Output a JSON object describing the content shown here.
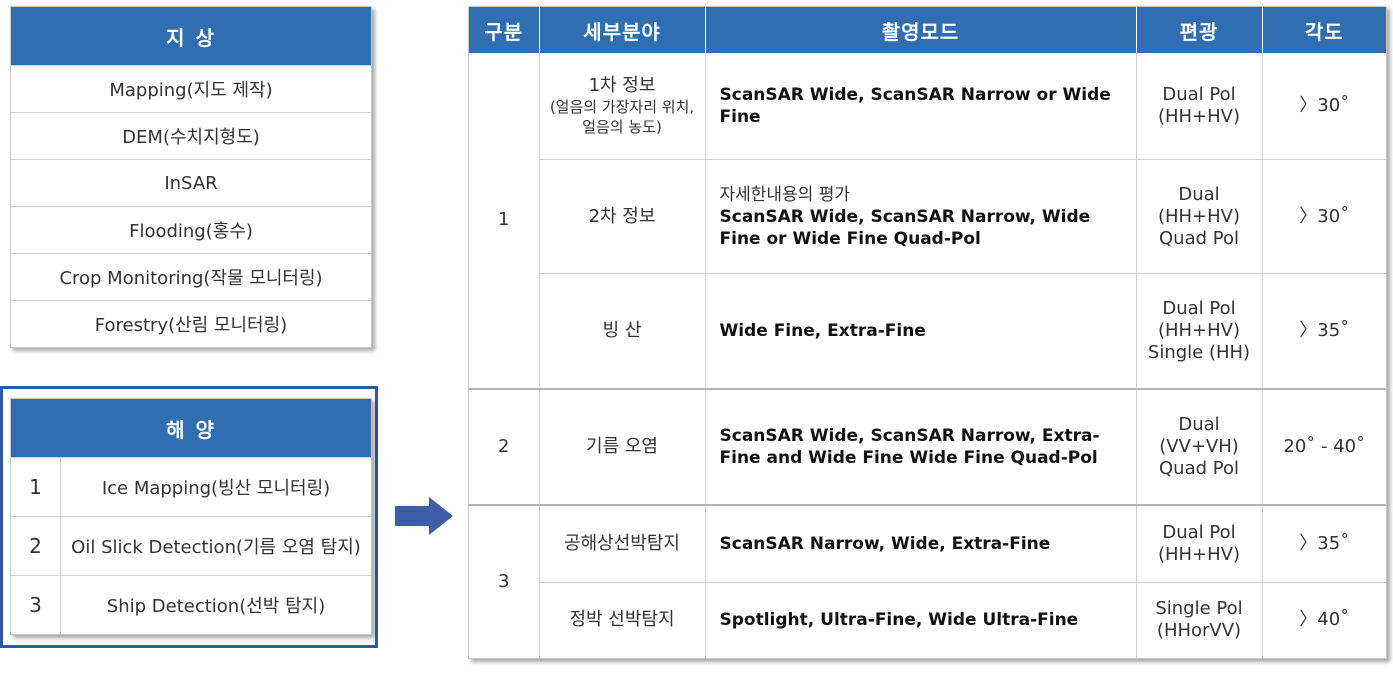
{
  "ground": {
    "title": "지 상",
    "items": [
      "Mapping(지도 제작)",
      "DEM(수치지형도)",
      "InSAR",
      "Flooding(홍수)",
      "Crop Monitoring(작물 모니터링)",
      "Forestry(산림 모니터링)"
    ]
  },
  "ocean": {
    "title": "해 양",
    "items": [
      {
        "num": "1",
        "label": "Ice Mapping(빙산 모니터링)"
      },
      {
        "num": "2",
        "label": "Oil Slick Detection(기름 오염 탐지)"
      },
      {
        "num": "3",
        "label": "Ship Detection(선박 탐지)"
      }
    ]
  },
  "arrow_icon": "right-arrow-icon",
  "table": {
    "headers": [
      "구분",
      "세부분야",
      "촬영모드",
      "편광",
      "각도"
    ],
    "groups": [
      "1",
      "2",
      "3"
    ],
    "rows": [
      {
        "field": "1차 정보",
        "field_note": "(얼음의 가장자리 위치, 얼음의 농도)",
        "mode_plain": "",
        "mode": "ScanSAR Wide, ScanSAR Narrow or Wide Fine",
        "pol": "Dual Pol (HH+HV)",
        "angle": "〉30˚"
      },
      {
        "field": "2차 정보",
        "field_note": "",
        "mode_plain": "자세한내용의 평가",
        "mode": "ScanSAR Wide, ScanSAR Narrow, Wide Fine or Wide Fine Quad-Pol",
        "pol": "Dual (HH+HV) Quad Pol",
        "angle": "〉30˚"
      },
      {
        "field": "빙 산",
        "field_note": "",
        "mode_plain": "",
        "mode": "Wide Fine, Extra-Fine",
        "pol": "Dual Pol (HH+HV) Single (HH)",
        "angle": "〉35˚"
      },
      {
        "field": "기름 오염",
        "field_note": "",
        "mode_plain": "",
        "mode": "ScanSAR Wide, ScanSAR Narrow, Extra-Fine and Wide Fine Wide Fine Quad-Pol",
        "pol": "Dual (VV+VH) Quad Pol",
        "angle": "20˚ - 40˚"
      },
      {
        "field": "공해상선박탐지",
        "field_note": "",
        "mode_plain": "",
        "mode": "ScanSAR Narrow, Wide, Extra-Fine",
        "pol": "Dual Pol (HH+HV)",
        "angle": "〉35˚"
      },
      {
        "field": "정박 선박탐지",
        "field_note": "",
        "mode_plain": "",
        "mode": "Spotlight, Ultra-Fine, Wide Ultra-Fine",
        "pol": "Single Pol (HHorVV)",
        "angle": "〉40˚"
      }
    ]
  }
}
